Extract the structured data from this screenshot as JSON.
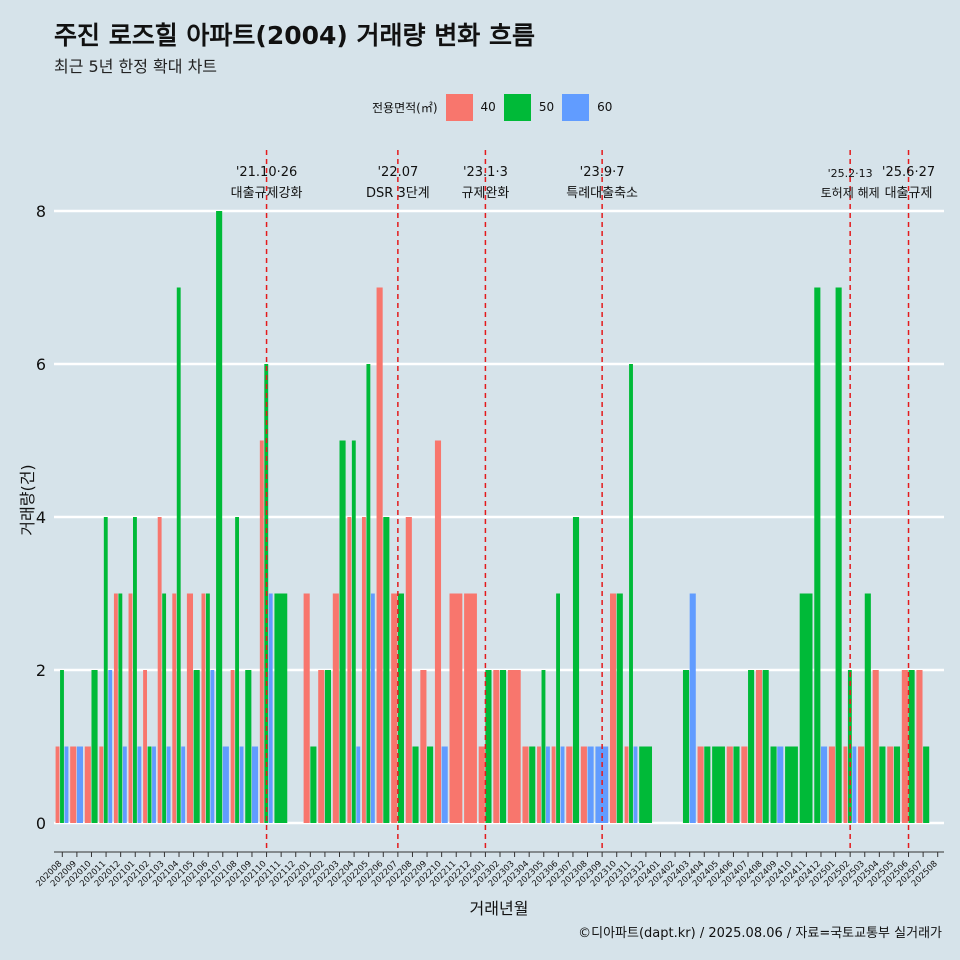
{
  "title": "주진 로즈힐 아파트(2004) 거래량 변화 흐름",
  "subtitle": "최근 5년 한정 확대 차트",
  "caption": "©디아파트(dapt.kr) / 2025.08.06 / 자료=국토교통부 실거래가",
  "legend": {
    "title": "전용면적(㎡)",
    "items": [
      {
        "label": "40",
        "color": "#f8766d"
      },
      {
        "label": "50",
        "color": "#00ba38"
      },
      {
        "label": "60",
        "color": "#619cff"
      }
    ]
  },
  "chart_data": {
    "type": "bar",
    "xlabel": "거래년월",
    "ylabel": "거래량(건)",
    "ylim": [
      0,
      8
    ],
    "yticks": [
      0,
      2,
      4,
      6,
      8
    ],
    "grid": true,
    "legend_position": "top",
    "categories": [
      "202008",
      "202009",
      "202010",
      "202011",
      "202012",
      "202101",
      "202102",
      "202103",
      "202104",
      "202105",
      "202106",
      "202107",
      "202108",
      "202109",
      "202110",
      "202111",
      "202112",
      "202201",
      "202202",
      "202203",
      "202204",
      "202205",
      "202206",
      "202207",
      "202208",
      "202209",
      "202210",
      "202211",
      "202212",
      "202301",
      "202302",
      "202303",
      "202304",
      "202305",
      "202306",
      "202307",
      "202308",
      "202309",
      "202310",
      "202311",
      "202312",
      "202401",
      "202402",
      "202403",
      "202404",
      "202405",
      "202406",
      "202407",
      "202408",
      "202409",
      "202410",
      "202411",
      "202412",
      "202501",
      "202502",
      "202503",
      "202504",
      "202505",
      "202506",
      "202507",
      "202508"
    ],
    "series": [
      {
        "name": "40",
        "values": [
          1,
          1,
          1,
          1,
          3,
          3,
          2,
          4,
          3,
          3,
          3,
          0,
          2,
          0,
          5,
          0,
          0,
          3,
          2,
          3,
          4,
          4,
          7,
          3,
          4,
          2,
          5,
          3,
          3,
          1,
          2,
          2,
          1,
          1,
          1,
          1,
          1,
          0,
          3,
          1,
          0,
          0,
          0,
          0,
          1,
          0,
          1,
          1,
          2,
          0,
          0,
          0,
          0,
          1,
          1,
          1,
          2,
          1,
          2,
          2,
          0
        ]
      },
      {
        "name": "50",
        "values": [
          2,
          0,
          2,
          4,
          3,
          4,
          1,
          3,
          7,
          2,
          3,
          8,
          4,
          2,
          6,
          3,
          0,
          1,
          2,
          5,
          5,
          6,
          4,
          3,
          1,
          1,
          0,
          0,
          0,
          2,
          2,
          0,
          1,
          2,
          3,
          4,
          0,
          0,
          3,
          6,
          1,
          0,
          0,
          2,
          1,
          1,
          1,
          2,
          2,
          1,
          1,
          3,
          7,
          7,
          2,
          3,
          1,
          1,
          2,
          1,
          0
        ]
      },
      {
        "name": "60",
        "values": [
          1,
          1,
          0,
          2,
          1,
          1,
          1,
          1,
          1,
          0,
          2,
          1,
          1,
          1,
          3,
          0,
          0,
          0,
          0,
          0,
          1,
          3,
          0,
          0,
          0,
          0,
          1,
          0,
          0,
          0,
          0,
          0,
          0,
          1,
          1,
          0,
          1,
          1,
          0,
          1,
          0,
          0,
          0,
          3,
          0,
          0,
          0,
          0,
          0,
          1,
          0,
          0,
          1,
          0,
          1,
          0,
          0,
          0,
          0,
          0,
          0
        ]
      }
    ],
    "annotations": [
      {
        "x": "202110",
        "lines": [
          "'21.10·26",
          "대출규제강화"
        ]
      },
      {
        "x": "202207",
        "lines": [
          "'22.07",
          "DSR 3단계"
        ]
      },
      {
        "x": "202301",
        "lines": [
          "'23.1·3",
          "규제완화"
        ]
      },
      {
        "x": "202309",
        "lines": [
          "'23.9·7",
          "특례대출축소"
        ]
      },
      {
        "x": "202502",
        "lines": [
          "'25.2·13",
          "토허제 해제"
        ]
      },
      {
        "x": "202506",
        "lines": [
          "'25.6·27",
          "대출규제"
        ]
      }
    ]
  }
}
